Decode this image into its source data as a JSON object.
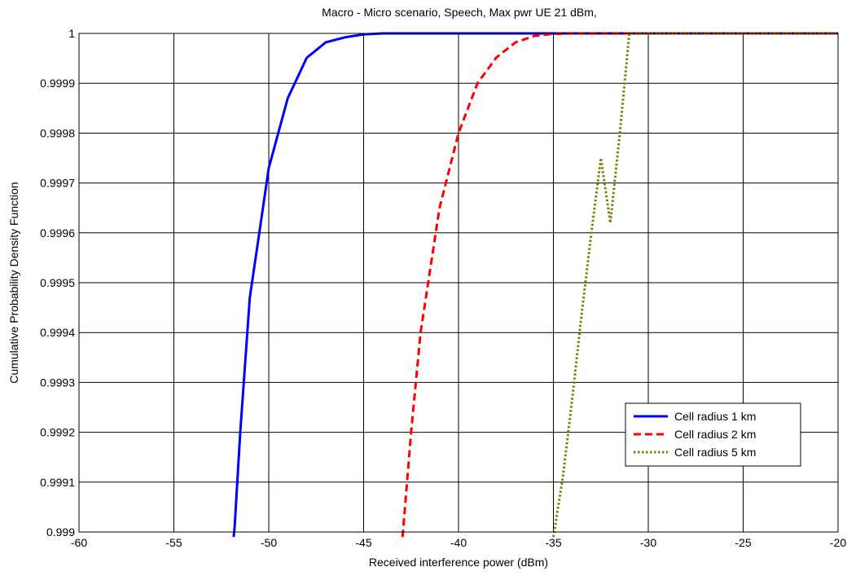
{
  "chart_data": {
    "type": "line",
    "title": "Macro - Micro scenario, Speech, Max pwr UE 21 dBm,",
    "xlabel": "Received interference power (dBm)",
    "ylabel": "Cumulative Probability Density Function",
    "xlim": [
      -60,
      -20
    ],
    "ylim": [
      0.999,
      1
    ],
    "xticks": [
      -60,
      -55,
      -50,
      -45,
      -40,
      -35,
      -30,
      -25,
      -20
    ],
    "xtick_labels": [
      "-60",
      "-55",
      "-50",
      "-45",
      "-40",
      "-35",
      "-30",
      "-25",
      "-20"
    ],
    "yticks": [
      0.999,
      0.9991,
      0.9992,
      0.9993,
      0.9994,
      0.9995,
      0.9996,
      0.9997,
      0.9998,
      0.9999,
      1
    ],
    "ytick_labels": [
      "0.999",
      "0.9991",
      "0.9992",
      "0.9993",
      "0.9994",
      "0.9995",
      "0.9996",
      "0.9997",
      "0.9998",
      "0.9999",
      "1"
    ],
    "grid": true,
    "legend_position": "lower-right",
    "series": [
      {
        "name": "Cell radius 1 km",
        "color": "#0000ff",
        "dash": "solid",
        "x": [
          -51.85,
          -51.8,
          -51.5,
          -51.0,
          -50.5,
          -50.0,
          -49.0,
          -48.0,
          -47.0,
          -46.0,
          -45.0,
          -44.0,
          -20.0
        ],
        "y": [
          0.99899,
          0.99901,
          0.9992,
          0.99947,
          0.9996,
          0.99973,
          0.99987,
          0.999951,
          0.999982,
          0.999992,
          0.999998,
          1.0,
          1.0
        ]
      },
      {
        "name": "Cell radius 2 km",
        "color": "#ff0000",
        "dash": "dashed",
        "x": [
          -42.95,
          -42.5,
          -42.0,
          -41.0,
          -40.0,
          -39.0,
          -38.0,
          -37.0,
          -36.0,
          -35.0,
          -34.0,
          -33.0,
          -20.0
        ],
        "y": [
          0.99899,
          0.9992,
          0.9994,
          0.99965,
          0.9998,
          0.9999,
          0.999952,
          0.999982,
          0.999995,
          0.999999,
          1.0,
          1.0,
          1.0
        ]
      },
      {
        "name": "Cell radius 5 km",
        "color": "#808000",
        "dash": "dotted",
        "x": [
          -35.0,
          -34.5,
          -34.0,
          -33.5,
          -33.0,
          -32.5,
          -32.0,
          -31.5,
          -31.0,
          -20.0
        ],
        "y": [
          0.99899,
          0.99911,
          0.99927,
          0.99944,
          0.9996,
          0.99975,
          0.99962,
          0.9998,
          1.0,
          1.0
        ]
      }
    ]
  }
}
